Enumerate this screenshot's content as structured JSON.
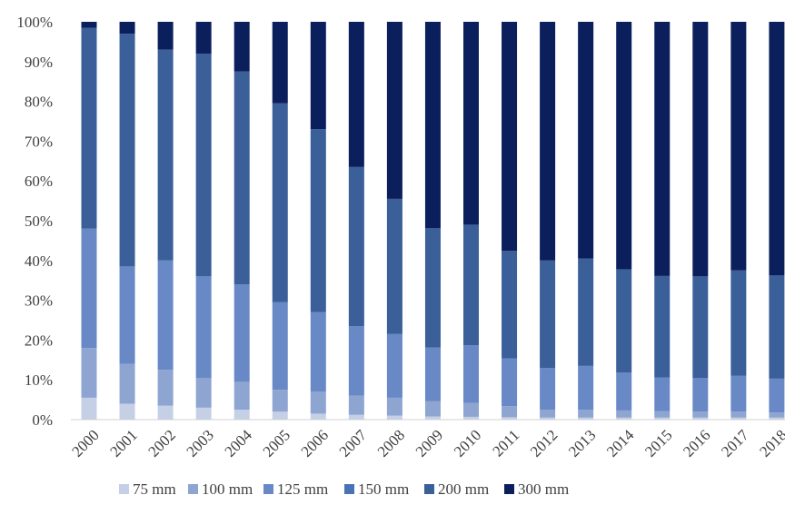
{
  "chart_data": {
    "type": "bar",
    "stacked": true,
    "percent": true,
    "title": "",
    "xlabel": "",
    "ylabel": "",
    "ylim": [
      0,
      100
    ],
    "y_ticks": [
      "0%",
      "10%",
      "20%",
      "30%",
      "40%",
      "50%",
      "60%",
      "70%",
      "80%",
      "90%",
      "100%"
    ],
    "grid": false,
    "legend_position": "bottom",
    "categories": [
      "2000",
      "2001",
      "2002",
      "2003",
      "2004",
      "2005",
      "2006",
      "2007",
      "2008",
      "2009",
      "2010",
      "2011",
      "2012",
      "2013",
      "2014",
      "2015",
      "2016",
      "2017",
      "2018"
    ],
    "series": [
      {
        "name": "75 mm",
        "color": "#c5d0e6",
        "values": [
          5.5,
          4.0,
          3.5,
          3.0,
          2.5,
          2.0,
          1.5,
          1.2,
          1.0,
          0.8,
          0.7,
          0.6,
          0.5,
          0.5,
          0.5,
          0.5,
          0.5,
          0.5,
          0.5
        ]
      },
      {
        "name": "100 mm",
        "color": "#8ea5d2",
        "values": [
          12.5,
          10.0,
          9.0,
          7.5,
          7.0,
          5.5,
          5.5,
          4.8,
          4.5,
          3.8,
          3.5,
          2.8,
          2.0,
          2.0,
          1.8,
          1.6,
          1.5,
          1.5,
          1.3
        ]
      },
      {
        "name": "125 mm",
        "color": "#6889c6",
        "values": [
          30.0,
          24.5,
          27.5,
          25.5,
          24.5,
          22.0,
          20.0,
          17.5,
          16.0,
          13.5,
          14.5,
          12.0,
          10.5,
          11.0,
          9.5,
          8.5,
          8.5,
          9.0,
          8.5
        ]
      },
      {
        "name": "150 mm",
        "color": "#4a73b6",
        "values": [
          0,
          0,
          0,
          0,
          0,
          0,
          0,
          0,
          0,
          0,
          0,
          0,
          0,
          0,
          0,
          0,
          0,
          0,
          0
        ]
      },
      {
        "name": "200 mm",
        "color": "#3a5f99",
        "values": [
          50.5,
          58.5,
          53.0,
          56.0,
          53.5,
          50.0,
          46.0,
          40.0,
          34.0,
          30.0,
          30.3,
          27.0,
          27.0,
          27.0,
          26.0,
          25.5,
          25.5,
          26.5,
          26.0
        ]
      },
      {
        "name": "300 mm",
        "color": "#0b1f5c",
        "values": [
          1.5,
          3.0,
          7.0,
          8.0,
          12.5,
          20.5,
          27.0,
          36.5,
          44.5,
          51.9,
          51.0,
          57.6,
          60.0,
          59.5,
          62.2,
          63.9,
          64.0,
          62.5,
          63.7
        ]
      }
    ]
  }
}
